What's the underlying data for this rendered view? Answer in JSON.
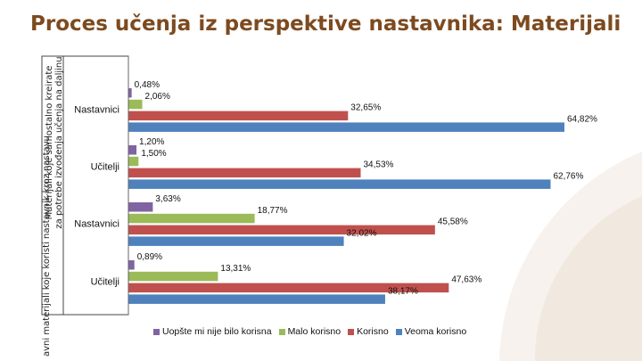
{
  "title": "Proces učenja iz perspektive nastavnika: Materijali",
  "colors": {
    "title": "#7d4a1f",
    "bg_arc": "#f3ede7"
  },
  "chart_data": {
    "type": "bar",
    "orientation": "horizontal",
    "y_group_labels": [
      "avni materijali koje koristi nastavnik kroz nastavu",
      "Materijali koje samostalno kreirate za potrebe izvođenja učenja na daljinu"
    ],
    "categories": [
      "Nastavnici",
      "Učitelji",
      "Nastavnici",
      "Učitelji"
    ],
    "series": [
      {
        "name": "Uopšte mi nije bilo korisna",
        "color": "#8064a2",
        "values": [
          0.48,
          1.2,
          3.63,
          0.89
        ],
        "labels": [
          "0,48%",
          "1,20%",
          "3,63%",
          "0,89%"
        ]
      },
      {
        "name": "Malo korisno",
        "color": "#9bbb59",
        "values": [
          2.06,
          1.5,
          18.77,
          13.31
        ],
        "labels": [
          "2,06%",
          "1,50%",
          "18,77%",
          "13,31%"
        ]
      },
      {
        "name": "Korisno",
        "color": "#c0504d",
        "values": [
          32.65,
          34.53,
          45.58,
          47.63
        ],
        "labels": [
          "32,65%",
          "34,53%",
          "45,58%",
          "47,63%"
        ]
      },
      {
        "name": "Veoma korisno",
        "color": "#4f81bd",
        "values": [
          64.82,
          62.76,
          32.02,
          38.17
        ],
        "labels": [
          "64,82%",
          "62,76%",
          "32,02%",
          "38,17%"
        ]
      }
    ],
    "xlim": [
      0,
      100
    ],
    "legend_position": "bottom",
    "grid": false
  }
}
